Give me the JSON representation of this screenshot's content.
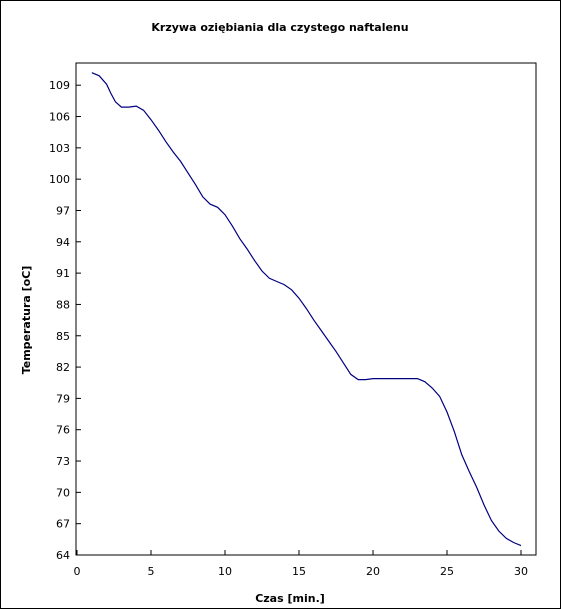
{
  "chart_data": {
    "type": "line",
    "title": "Krzywa oziębiania dla czystego naftalenu",
    "xlabel": "Czas  [min.]",
    "ylabel": "Temperatura [oC]",
    "xlim": [
      0,
      31
    ],
    "ylim": [
      64,
      111
    ],
    "x_ticks": [
      0,
      5,
      10,
      15,
      20,
      25,
      30
    ],
    "y_ticks": [
      64,
      67,
      70,
      73,
      76,
      79,
      82,
      85,
      88,
      91,
      94,
      97,
      100,
      103,
      106,
      109
    ],
    "grid": false,
    "series": [
      {
        "color": "#000080",
        "x": [
          1.0,
          1.5,
          2.0,
          2.3,
          2.6,
          3.0,
          3.5,
          4.0,
          4.5,
          5.0,
          5.5,
          6.0,
          6.5,
          7.0,
          7.5,
          8.0,
          8.5,
          9.0,
          9.5,
          10.0,
          10.5,
          11.0,
          11.5,
          12.0,
          12.5,
          13.0,
          13.5,
          14.0,
          14.5,
          15.0,
          15.5,
          16.0,
          16.5,
          17.0,
          17.5,
          18.0,
          18.5,
          19.0,
          19.5,
          20.0,
          20.5,
          21.0,
          21.5,
          22.0,
          22.5,
          23.0,
          23.5,
          24.0,
          24.5,
          25.0,
          25.5,
          26.0,
          26.5,
          27.0,
          27.5,
          28.0,
          28.5,
          29.0,
          29.5,
          30.0
        ],
        "y": [
          110.2,
          109.9,
          109.1,
          108.2,
          107.4,
          106.9,
          106.9,
          107.0,
          106.6,
          105.7,
          104.7,
          103.6,
          102.6,
          101.7,
          100.6,
          99.5,
          98.3,
          97.6,
          97.3,
          96.6,
          95.5,
          94.3,
          93.3,
          92.2,
          91.2,
          90.5,
          90.2,
          89.9,
          89.4,
          88.6,
          87.6,
          86.5,
          85.5,
          84.5,
          83.5,
          82.4,
          81.3,
          80.8,
          80.8,
          80.9,
          80.9,
          80.9,
          80.9,
          80.9,
          80.9,
          80.9,
          80.6,
          80.0,
          79.2,
          77.7,
          75.8,
          73.6,
          72.0,
          70.5,
          68.8,
          67.3,
          66.3,
          65.6,
          65.2,
          64.9
        ]
      }
    ]
  }
}
